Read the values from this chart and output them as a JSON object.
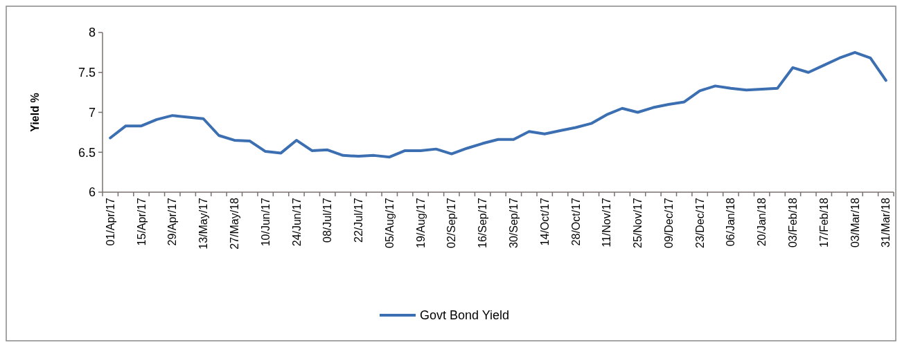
{
  "chart_data": {
    "type": "line",
    "ylabel": "Yield %",
    "categories": [
      "01/Apr/17",
      null,
      "15/Apr/17",
      null,
      "29/Apr/17",
      null,
      "13/May/17",
      null,
      "27/May/18",
      null,
      "10/Jun/17",
      null,
      "24/Jun/17",
      null,
      "08/Jul/17",
      null,
      "22/Jul/17",
      null,
      "05/Aug/17",
      null,
      "19/Aug/17",
      null,
      "02/Sep/17",
      null,
      "16/Sep/17",
      null,
      "30/Sep/17",
      null,
      "14/Oct/17",
      null,
      "28/Oct/17",
      null,
      "11/Nov/17",
      null,
      "25/Nov/17",
      null,
      "09/Dec/17",
      null,
      "23/Dec/17",
      null,
      "06/Jan/18",
      null,
      "20/Jan/18",
      null,
      "03/Feb/18",
      null,
      "17/Feb/18",
      null,
      "03/Mar/18",
      null,
      "31/Mar/18"
    ],
    "series": [
      {
        "name": "Govt Bond Yield",
        "color": "#3b6fb1",
        "values": [
          6.68,
          6.83,
          6.83,
          6.91,
          6.96,
          6.94,
          6.92,
          6.71,
          6.65,
          6.64,
          6.51,
          6.49,
          6.65,
          6.52,
          6.53,
          6.46,
          6.45,
          6.46,
          6.44,
          6.52,
          6.52,
          6.54,
          6.48,
          6.55,
          6.61,
          6.66,
          6.66,
          6.76,
          6.73,
          6.77,
          6.81,
          6.86,
          6.97,
          7.05,
          7.0,
          7.06,
          7.1,
          7.13,
          7.27,
          7.33,
          7.3,
          7.28,
          7.29,
          7.3,
          7.56,
          7.5,
          7.59,
          7.68,
          7.75,
          7.68,
          7.4
        ]
      }
    ],
    "ylim": [
      6,
      8
    ],
    "yticks": [
      6,
      6.5,
      7,
      7.5,
      8
    ],
    "grid": false,
    "legend": "bottom",
    "marker": "none",
    "line_style": "solid"
  }
}
